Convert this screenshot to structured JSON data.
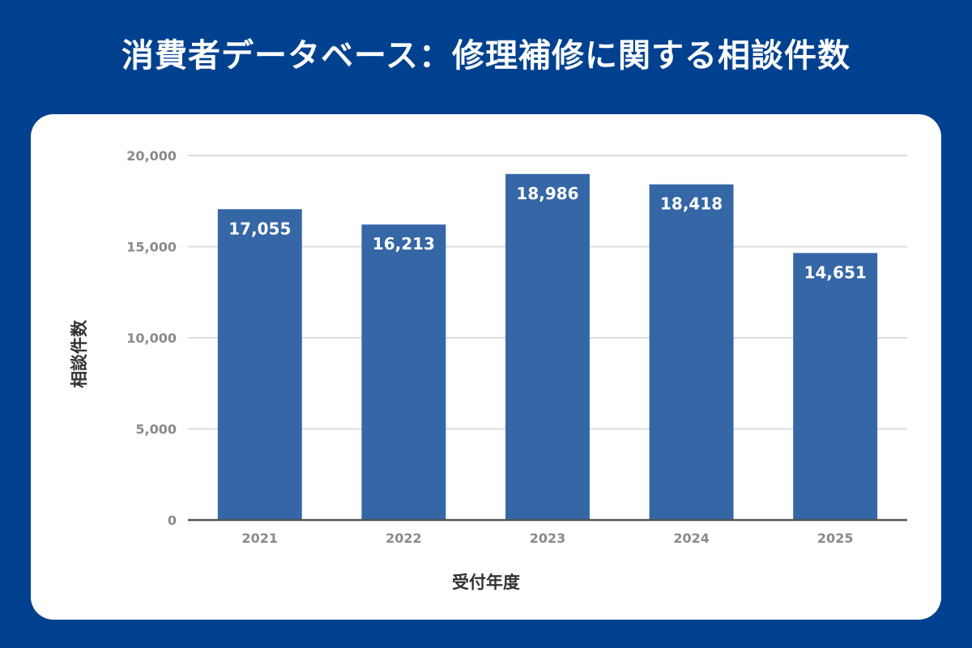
{
  "title": "消費者データベース：修理補修に関する相談件数",
  "colors": {
    "background": "#00418f",
    "bar": "#3566a6",
    "grid": "#dcdcdc",
    "axis": "#555555"
  },
  "chart_data": {
    "type": "bar",
    "categories": [
      "2021",
      "2022",
      "2023",
      "2024",
      "2025"
    ],
    "values": [
      17055,
      16213,
      18986,
      18418,
      14651
    ],
    "value_labels": [
      "17,055",
      "16,213",
      "18,986",
      "18,418",
      "14,651"
    ],
    "xlabel": "受付年度",
    "ylabel": "相談件数",
    "ylim": [
      0,
      20000
    ],
    "yticks": [
      0,
      5000,
      10000,
      15000,
      20000
    ],
    "ytick_labels": [
      "0",
      "5,000",
      "10,000",
      "15,000",
      "20,000"
    ],
    "grid": true,
    "legend": "none"
  }
}
